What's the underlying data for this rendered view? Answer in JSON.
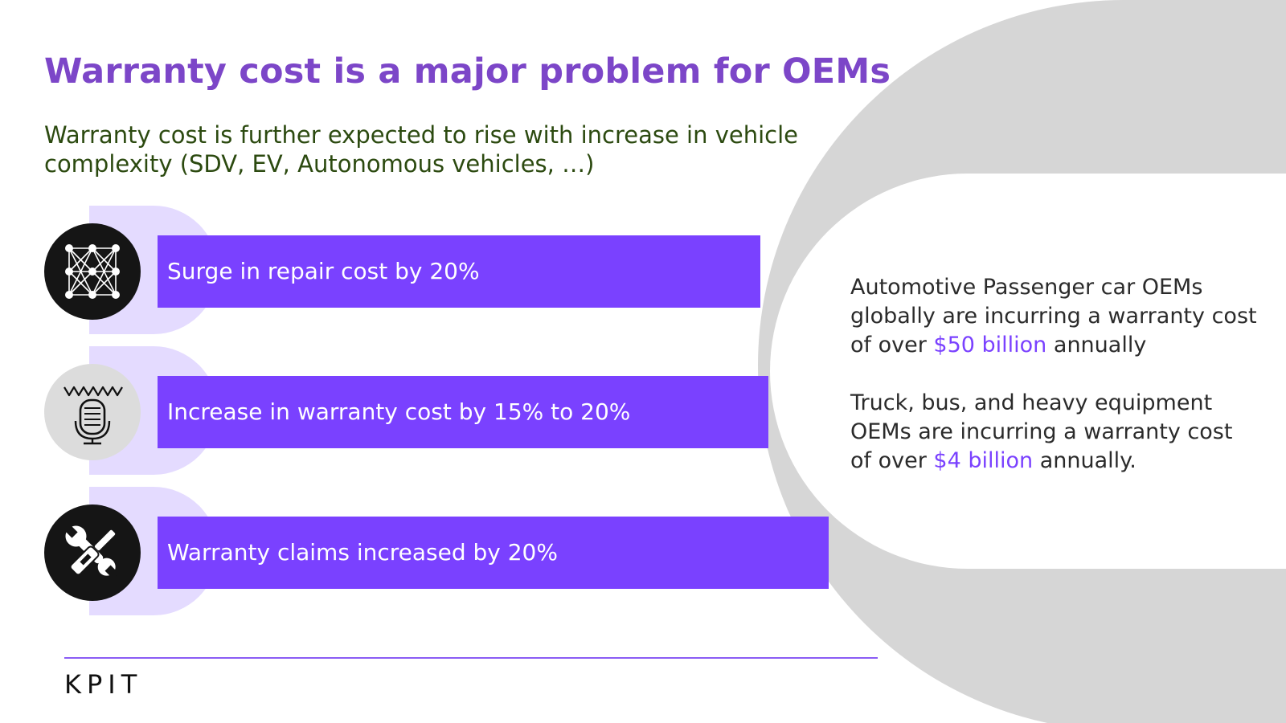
{
  "title": "Warranty cost is a major problem for OEMs",
  "subtitle": "Warranty cost is further expected to rise with increase in vehicle complexity (SDV, EV, Autonomous vehicles, …)",
  "rows": [
    {
      "label": "Surge in repair cost by 20%",
      "icon": "neural-network-icon"
    },
    {
      "label": "Increase in warranty cost by 15% to 20%",
      "icon": "microphone-icon"
    },
    {
      "label": "Warranty claims increased by 20%",
      "icon": "wrench-screwdriver-icon"
    }
  ],
  "stats": [
    {
      "before": "Automotive Passenger car OEMs globally are incurring a warranty cost of over ",
      "highlight": "$50 billion",
      "after": " annually"
    },
    {
      "before": "Truck, bus, and heavy equipment OEMs are incurring a warranty cost of over ",
      "highlight": "$4 billion",
      "after": " annually."
    }
  ],
  "logo": "KPIT",
  "colors": {
    "title": "#7c46c8",
    "subtitle": "#2c4a10",
    "bar": "#7a41ff",
    "row_background": "#e4dbff",
    "highlight": "#7a41ff",
    "ring": "#d6d6d6"
  }
}
